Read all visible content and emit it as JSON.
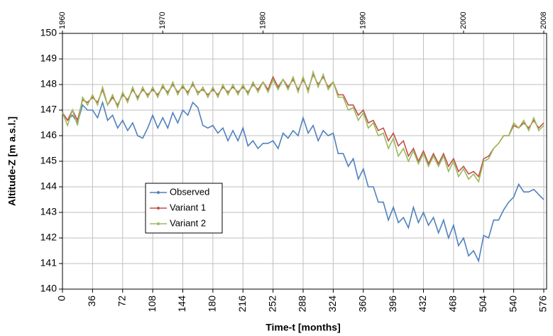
{
  "chart_data": {
    "type": "line",
    "xlabel": "Time-t [months]",
    "ylabel": "Altitude-Z  [m a.s.l.]",
    "x": [
      0,
      6,
      12,
      18,
      24,
      30,
      36,
      42,
      48,
      54,
      60,
      66,
      72,
      78,
      84,
      90,
      96,
      102,
      108,
      114,
      120,
      126,
      132,
      138,
      144,
      150,
      156,
      162,
      168,
      174,
      180,
      186,
      192,
      198,
      204,
      210,
      216,
      222,
      228,
      234,
      240,
      246,
      252,
      258,
      264,
      270,
      276,
      282,
      288,
      294,
      300,
      306,
      312,
      318,
      324,
      330,
      336,
      342,
      348,
      354,
      360,
      366,
      372,
      378,
      384,
      390,
      396,
      402,
      408,
      414,
      420,
      426,
      432,
      438,
      444,
      450,
      456,
      462,
      468,
      474,
      480,
      486,
      492,
      498,
      504,
      510,
      516,
      522,
      528,
      534,
      540,
      546,
      552,
      558,
      564,
      570,
      576
    ],
    "series": [
      {
        "name": "Observed",
        "color": "#4f81bd",
        "values": [
          146.9,
          146.6,
          146.8,
          146.5,
          147.2,
          147.0,
          147.0,
          146.7,
          147.3,
          146.6,
          146.8,
          146.3,
          146.6,
          146.2,
          146.5,
          146.0,
          145.9,
          146.3,
          146.8,
          146.3,
          146.7,
          146.3,
          146.9,
          146.5,
          147.0,
          146.8,
          147.3,
          147.1,
          146.4,
          146.3,
          146.4,
          146.1,
          146.3,
          145.8,
          146.2,
          145.8,
          146.3,
          145.6,
          145.8,
          145.5,
          145.7,
          145.7,
          145.8,
          145.5,
          146.1,
          145.9,
          146.2,
          146.0,
          146.7,
          146.1,
          146.4,
          145.8,
          146.2,
          146.0,
          146.1,
          145.3,
          145.3,
          144.8,
          145.1,
          144.3,
          144.7,
          144.0,
          144.0,
          143.4,
          143.4,
          142.7,
          143.2,
          142.6,
          142.8,
          142.4,
          143.2,
          142.6,
          143.0,
          142.5,
          142.8,
          142.2,
          142.7,
          142.0,
          142.5,
          141.7,
          142.0,
          141.3,
          141.5,
          141.1,
          142.1,
          142.0,
          142.7,
          142.7,
          143.1,
          143.4,
          143.6,
          144.1,
          143.8,
          143.8,
          143.9,
          143.7,
          143.5
        ]
      },
      {
        "name": "Variant 1",
        "color": "#c0504d",
        "values": [
          146.9,
          146.6,
          147.0,
          146.6,
          147.4,
          147.3,
          147.5,
          147.3,
          147.8,
          147.2,
          147.5,
          147.2,
          147.6,
          147.4,
          147.8,
          147.5,
          147.8,
          147.6,
          147.8,
          147.6,
          147.9,
          147.7,
          148.0,
          147.7,
          147.9,
          147.7,
          148.0,
          147.7,
          147.8,
          147.6,
          147.8,
          147.6,
          147.9,
          147.7,
          147.9,
          147.7,
          147.9,
          147.7,
          148.0,
          147.8,
          148.1,
          147.8,
          148.3,
          147.9,
          148.2,
          147.9,
          148.2,
          147.8,
          148.2,
          147.8,
          148.4,
          148.0,
          148.3,
          147.9,
          148.1,
          147.6,
          147.6,
          147.2,
          147.2,
          146.8,
          147.0,
          146.5,
          146.6,
          146.2,
          146.3,
          145.8,
          146.1,
          145.6,
          145.8,
          145.2,
          145.5,
          145.0,
          145.4,
          144.9,
          145.3,
          144.9,
          145.3,
          144.8,
          145.1,
          144.6,
          144.8,
          144.5,
          144.6,
          144.4,
          145.1,
          145.2,
          145.5,
          145.7,
          146.0,
          146.0,
          146.4,
          146.3,
          146.5,
          146.3,
          146.6,
          146.3,
          146.5
        ]
      },
      {
        "name": "Variant 2",
        "color": "#9bbb59",
        "values": [
          146.9,
          146.4,
          147.0,
          146.4,
          147.5,
          147.2,
          147.6,
          147.2,
          147.9,
          147.2,
          147.6,
          147.1,
          147.7,
          147.3,
          147.9,
          147.4,
          147.9,
          147.5,
          147.9,
          147.5,
          148.0,
          147.6,
          148.1,
          147.6,
          148.0,
          147.6,
          148.1,
          147.6,
          147.9,
          147.5,
          147.9,
          147.5,
          148.0,
          147.6,
          148.0,
          147.6,
          148.0,
          147.6,
          148.1,
          147.7,
          148.1,
          147.7,
          148.2,
          147.8,
          148.2,
          147.8,
          148.3,
          147.7,
          148.3,
          147.7,
          148.5,
          147.9,
          148.4,
          147.8,
          148.1,
          147.5,
          147.5,
          147.0,
          147.1,
          146.6,
          146.9,
          146.3,
          146.5,
          146.0,
          146.1,
          145.5,
          145.9,
          145.2,
          145.5,
          145.0,
          145.4,
          144.9,
          145.3,
          144.8,
          145.2,
          144.8,
          145.2,
          144.6,
          145.0,
          144.4,
          144.7,
          144.3,
          144.5,
          144.2,
          145.0,
          145.1,
          145.5,
          145.7,
          146.0,
          146.0,
          146.5,
          146.3,
          146.6,
          146.2,
          146.7,
          146.2,
          146.4
        ]
      }
    ],
    "xlim": [
      0,
      576
    ],
    "ylim": [
      140,
      150
    ],
    "xticks": [
      0,
      36,
      72,
      108,
      144,
      180,
      216,
      252,
      288,
      324,
      360,
      396,
      432,
      468,
      504,
      540,
      576
    ],
    "yticks": [
      140,
      141,
      142,
      143,
      144,
      145,
      146,
      147,
      148,
      149,
      150
    ],
    "x2ticks": [
      {
        "value": 0,
        "label": "1960"
      },
      {
        "value": 120,
        "label": "1970"
      },
      {
        "value": 240,
        "label": "1980"
      },
      {
        "value": 360,
        "label": "1990"
      },
      {
        "value": 480,
        "label": "2000"
      },
      {
        "value": 576,
        "label": "2008"
      }
    ],
    "grid": true
  }
}
